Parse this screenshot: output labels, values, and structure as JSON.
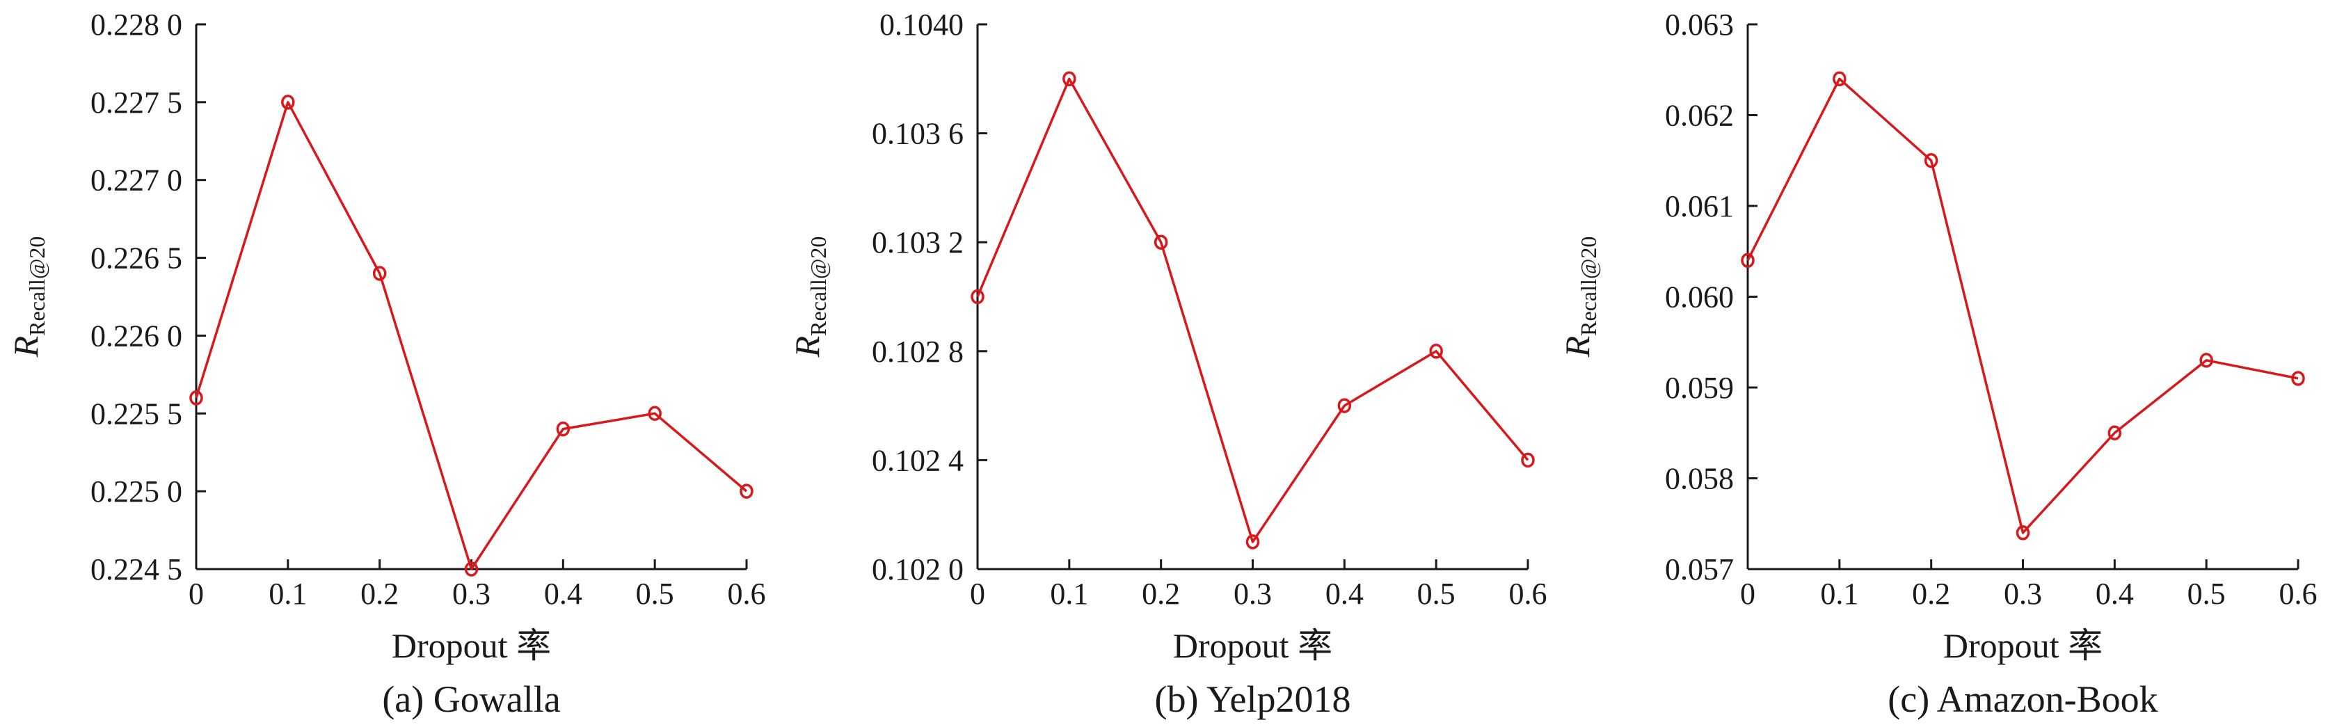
{
  "chart_data": [
    {
      "type": "line",
      "caption": "(a) Gowalla",
      "xlabel": "Dropout 率",
      "ylabel_main": "R",
      "ylabel_sub": "Recall@20",
      "x": [
        0,
        0.1,
        0.2,
        0.3,
        0.4,
        0.5,
        0.6
      ],
      "x_ticks": [
        "0",
        "0.1",
        "0.2",
        "0.3",
        "0.4",
        "0.5",
        "0.6"
      ],
      "ylim": [
        0.2245,
        0.228
      ],
      "y_ticks": [
        {
          "value": 0.2245,
          "label": "0.224 5"
        },
        {
          "value": 0.225,
          "label": "0.225 0"
        },
        {
          "value": 0.2255,
          "label": "0.225 5"
        },
        {
          "value": 0.226,
          "label": "0.226 0"
        },
        {
          "value": 0.2265,
          "label": "0.226 5"
        },
        {
          "value": 0.227,
          "label": "0.227 0"
        },
        {
          "value": 0.2275,
          "label": "0.227 5"
        },
        {
          "value": 0.228,
          "label": "0.228 0"
        }
      ],
      "series": [
        {
          "values": [
            0.2256,
            0.2275,
            0.2264,
            0.2245,
            0.2254,
            0.2255,
            0.225
          ],
          "color": "#d7191c"
        }
      ]
    },
    {
      "type": "line",
      "caption": "(b) Yelp2018",
      "xlabel": "Dropout 率",
      "ylabel_main": "R",
      "ylabel_sub": "Recall@20",
      "x": [
        0,
        0.1,
        0.2,
        0.3,
        0.4,
        0.5,
        0.6
      ],
      "x_ticks": [
        "0",
        "0.1",
        "0.2",
        "0.3",
        "0.4",
        "0.5",
        "0.6"
      ],
      "ylim": [
        0.102,
        0.104
      ],
      "y_ticks": [
        {
          "value": 0.102,
          "label": "0.102 0"
        },
        {
          "value": 0.1024,
          "label": "0.102 4"
        },
        {
          "value": 0.1028,
          "label": "0.102 8"
        },
        {
          "value": 0.1032,
          "label": "0.103 2"
        },
        {
          "value": 0.1036,
          "label": "0.103 6"
        },
        {
          "value": 0.104,
          "label": "0.1040"
        }
      ],
      "series": [
        {
          "values": [
            0.103,
            0.1038,
            0.1032,
            0.1021,
            0.1026,
            0.1028,
            0.1024
          ],
          "color": "#d7191c"
        }
      ]
    },
    {
      "type": "line",
      "caption": "(c) Amazon-Book",
      "xlabel": "Dropout 率",
      "ylabel_main": "R",
      "ylabel_sub": "Recall@20",
      "x": [
        0,
        0.1,
        0.2,
        0.3,
        0.4,
        0.5,
        0.6
      ],
      "x_ticks": [
        "0",
        "0.1",
        "0.2",
        "0.3",
        "0.4",
        "0.5",
        "0.6"
      ],
      "ylim": [
        0.057,
        0.063
      ],
      "y_ticks": [
        {
          "value": 0.057,
          "label": "0.057"
        },
        {
          "value": 0.058,
          "label": "0.058"
        },
        {
          "value": 0.059,
          "label": "0.059"
        },
        {
          "value": 0.06,
          "label": "0.060"
        },
        {
          "value": 0.061,
          "label": "0.061"
        },
        {
          "value": 0.062,
          "label": "0.062"
        },
        {
          "value": 0.063,
          "label": "0.063"
        }
      ],
      "series": [
        {
          "values": [
            0.0604,
            0.0624,
            0.0615,
            0.0574,
            0.0585,
            0.0593,
            0.0591
          ],
          "color": "#d7191c"
        }
      ]
    }
  ]
}
